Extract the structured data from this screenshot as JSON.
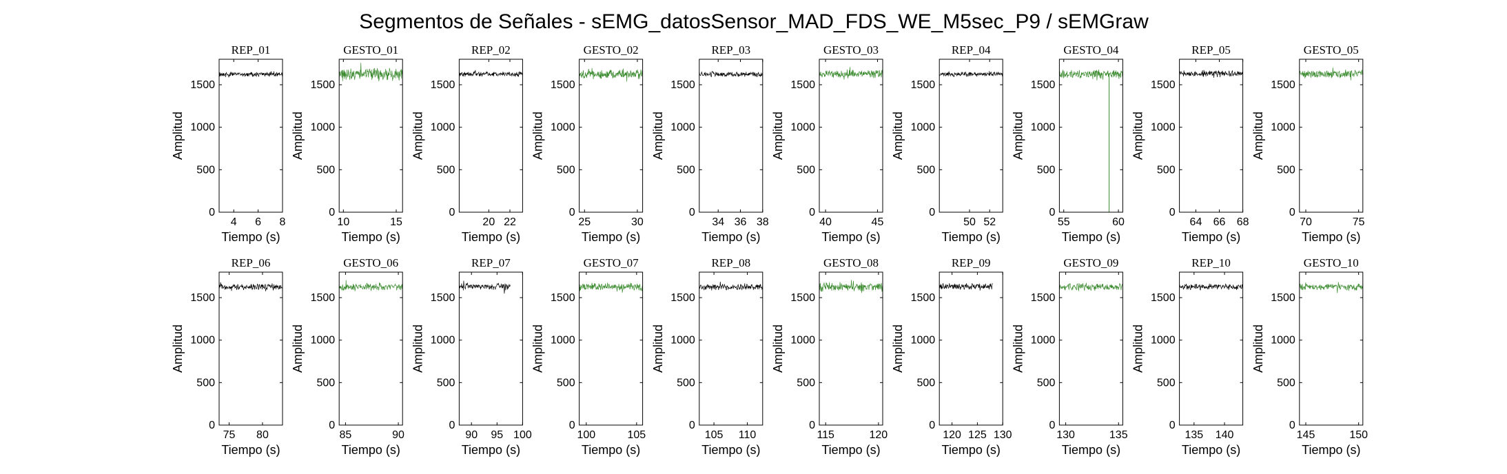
{
  "figure_title": "Segmentos de Señales - sEMG_datosSensor_MAD_FDS_WE_M5sec_P9 / sEMGraw",
  "colors": {
    "rep": "#000000",
    "gesto": "#3a8a2e"
  },
  "chart_data": [
    {
      "type": "line",
      "title": "REP_01",
      "xlabel": "Tiempo (s)",
      "ylabel": "Amplitud",
      "xlim": [
        2.8,
        8
      ],
      "xticks": [
        4,
        6,
        8
      ],
      "ylim": [
        0,
        1800
      ],
      "yticks": [
        0,
        500,
        1000,
        1500
      ],
      "color": "rep",
      "series": [
        {
          "x_range": [
            2.8,
            8
          ],
          "mean": 1625,
          "amplitude": 35
        }
      ]
    },
    {
      "type": "line",
      "title": "GESTO_01",
      "xlabel": "Tiempo (s)",
      "ylabel": "Amplitud",
      "xlim": [
        9.6,
        15.6
      ],
      "xticks": [
        10,
        15
      ],
      "ylim": [
        0,
        1800
      ],
      "yticks": [
        0,
        500,
        1000,
        1500
      ],
      "color": "gesto",
      "series": [
        {
          "x_range": [
            9.6,
            15.6
          ],
          "mean": 1625,
          "amplitude": 90
        }
      ]
    },
    {
      "type": "line",
      "title": "REP_02",
      "xlabel": "Tiempo (s)",
      "ylabel": "Amplitud",
      "xlim": [
        17.2,
        23.2
      ],
      "xticks": [
        20,
        22
      ],
      "ylim": [
        0,
        1800
      ],
      "yticks": [
        0,
        500,
        1000,
        1500
      ],
      "color": "rep",
      "series": [
        {
          "x_range": [
            17.2,
            23.2
          ],
          "mean": 1625,
          "amplitude": 35
        }
      ]
    },
    {
      "type": "line",
      "title": "GESTO_02",
      "xlabel": "Tiempo (s)",
      "ylabel": "Amplitud",
      "xlim": [
        24.5,
        30.5
      ],
      "xticks": [
        25,
        30
      ],
      "ylim": [
        0,
        1800
      ],
      "yticks": [
        0,
        500,
        1000,
        1500
      ],
      "color": "gesto",
      "series": [
        {
          "x_range": [
            24.5,
            30.5
          ],
          "mean": 1625,
          "amplitude": 70
        }
      ]
    },
    {
      "type": "line",
      "title": "REP_03",
      "xlabel": "Tiempo (s)",
      "ylabel": "Amplitud",
      "xlim": [
        32.3,
        38
      ],
      "xticks": [
        34,
        36,
        38
      ],
      "ylim": [
        0,
        1800
      ],
      "yticks": [
        0,
        500,
        1000,
        1500
      ],
      "color": "rep",
      "series": [
        {
          "x_range": [
            32.3,
            38
          ],
          "mean": 1625,
          "amplitude": 35
        }
      ]
    },
    {
      "type": "line",
      "title": "GESTO_03",
      "xlabel": "Tiempo (s)",
      "ylabel": "Amplitud",
      "xlim": [
        39.4,
        45.5
      ],
      "xticks": [
        40,
        45
      ],
      "ylim": [
        0,
        1800
      ],
      "yticks": [
        0,
        500,
        1000,
        1500
      ],
      "color": "gesto",
      "series": [
        {
          "x_range": [
            39.4,
            45.5
          ],
          "mean": 1625,
          "amplitude": 60
        }
      ]
    },
    {
      "type": "line",
      "title": "REP_04",
      "xlabel": "Tiempo (s)",
      "ylabel": "Amplitud",
      "xlim": [
        47,
        53.3
      ],
      "xticks": [
        50,
        52
      ],
      "ylim": [
        0,
        1800
      ],
      "yticks": [
        0,
        500,
        1000,
        1500
      ],
      "color": "rep",
      "series": [
        {
          "x_range": [
            47,
            53.3
          ],
          "mean": 1625,
          "amplitude": 35
        }
      ]
    },
    {
      "type": "line",
      "title": "GESTO_04",
      "xlabel": "Tiempo (s)",
      "ylabel": "Amplitud",
      "xlim": [
        54.6,
        60.4
      ],
      "xticks": [
        55,
        60
      ],
      "ylim": [
        0,
        1800
      ],
      "yticks": [
        0,
        500,
        1000,
        1500
      ],
      "color": "gesto",
      "series": [
        {
          "x_range": [
            54.6,
            60.4
          ],
          "mean": 1625,
          "amplitude": 60,
          "spikes": [
            {
              "x": 59.15,
              "y": 0
            },
            {
              "x": 60.05,
              "y": 1570
            }
          ]
        }
      ]
    },
    {
      "type": "line",
      "title": "REP_05",
      "xlabel": "Tiempo (s)",
      "ylabel": "Amplitud",
      "xlim": [
        62.6,
        68
      ],
      "xticks": [
        64,
        66,
        68
      ],
      "ylim": [
        0,
        1800
      ],
      "yticks": [
        0,
        500,
        1000,
        1500
      ],
      "color": "rep",
      "series": [
        {
          "x_range": [
            62.6,
            68
          ],
          "mean": 1630,
          "amplitude": 45
        }
      ]
    },
    {
      "type": "line",
      "title": "GESTO_05",
      "xlabel": "Tiempo (s)",
      "ylabel": "Amplitud",
      "xlim": [
        69.4,
        75.4
      ],
      "xticks": [
        70,
        75
      ],
      "ylim": [
        0,
        1800
      ],
      "yticks": [
        0,
        500,
        1000,
        1500
      ],
      "color": "gesto",
      "series": [
        {
          "x_range": [
            69.4,
            75.4
          ],
          "mean": 1625,
          "amplitude": 55
        }
      ]
    },
    {
      "type": "line",
      "title": "REP_06",
      "xlabel": "Tiempo (s)",
      "ylabel": "Amplitud",
      "xlim": [
        73.5,
        83
      ],
      "xticks": [
        75,
        80
      ],
      "ylim": [
        0,
        1800
      ],
      "yticks": [
        0,
        500,
        1000,
        1500
      ],
      "color": "rep",
      "series": [
        {
          "x_range": [
            73.5,
            83
          ],
          "mean": 1625,
          "amplitude": 45
        }
      ]
    },
    {
      "type": "line",
      "title": "GESTO_06",
      "xlabel": "Tiempo (s)",
      "ylabel": "Amplitud",
      "xlim": [
        84.4,
        90.4
      ],
      "xticks": [
        85,
        90
      ],
      "ylim": [
        0,
        1800
      ],
      "yticks": [
        0,
        500,
        1000,
        1500
      ],
      "color": "gesto",
      "series": [
        {
          "x_range": [
            84.4,
            90.4
          ],
          "mean": 1625,
          "amplitude": 50
        }
      ]
    },
    {
      "type": "line",
      "title": "REP_07",
      "xlabel": "Tiempo (s)",
      "ylabel": "Amplitud",
      "xlim": [
        87.6,
        100
      ],
      "xticks": [
        90,
        95,
        100
      ],
      "ylim": [
        0,
        1800
      ],
      "yticks": [
        0,
        500,
        1000,
        1500
      ],
      "color": "rep",
      "series": [
        {
          "x_range": [
            87.6,
            97.6
          ],
          "mean": 1630,
          "amplitude": 50
        }
      ]
    },
    {
      "type": "line",
      "title": "GESTO_07",
      "xlabel": "Tiempo (s)",
      "ylabel": "Amplitud",
      "xlim": [
        99.3,
        105.6
      ],
      "xticks": [
        100,
        105
      ],
      "ylim": [
        0,
        1800
      ],
      "yticks": [
        0,
        500,
        1000,
        1500
      ],
      "color": "gesto",
      "series": [
        {
          "x_range": [
            99.3,
            105.6
          ],
          "mean": 1625,
          "amplitude": 55
        }
      ]
    },
    {
      "type": "line",
      "title": "REP_08",
      "xlabel": "Tiempo (s)",
      "ylabel": "Amplitud",
      "xlim": [
        102.8,
        112.3
      ],
      "xticks": [
        105,
        110
      ],
      "ylim": [
        0,
        1800
      ],
      "yticks": [
        0,
        500,
        1000,
        1500
      ],
      "color": "rep",
      "series": [
        {
          "x_range": [
            102.8,
            112.3
          ],
          "mean": 1625,
          "amplitude": 45
        }
      ]
    },
    {
      "type": "line",
      "title": "GESTO_08",
      "xlabel": "Tiempo (s)",
      "ylabel": "Amplitud",
      "xlim": [
        114.4,
        120.4
      ],
      "xticks": [
        115,
        120
      ],
      "ylim": [
        0,
        1800
      ],
      "yticks": [
        0,
        500,
        1000,
        1500
      ],
      "color": "gesto",
      "series": [
        {
          "x_range": [
            114.4,
            120.4
          ],
          "mean": 1625,
          "amplitude": 60
        }
      ]
    },
    {
      "type": "line",
      "title": "REP_09",
      "xlabel": "Tiempo (s)",
      "ylabel": "Amplitud",
      "xlim": [
        117.5,
        130
      ],
      "xticks": [
        120,
        125,
        130
      ],
      "ylim": [
        0,
        1800
      ],
      "yticks": [
        0,
        500,
        1000,
        1500
      ],
      "color": "rep",
      "series": [
        {
          "x_range": [
            117.5,
            128
          ],
          "mean": 1630,
          "amplitude": 45
        }
      ]
    },
    {
      "type": "line",
      "title": "GESTO_09",
      "xlabel": "Tiempo (s)",
      "ylabel": "Amplitud",
      "xlim": [
        129.4,
        135.4
      ],
      "xticks": [
        130,
        135
      ],
      "ylim": [
        0,
        1800
      ],
      "yticks": [
        0,
        500,
        1000,
        1500
      ],
      "color": "gesto",
      "series": [
        {
          "x_range": [
            129.4,
            135.4
          ],
          "mean": 1625,
          "amplitude": 50
        }
      ]
    },
    {
      "type": "line",
      "title": "REP_10",
      "xlabel": "Tiempo (s)",
      "ylabel": "Amplitud",
      "xlim": [
        132.6,
        143
      ],
      "xticks": [
        135,
        140
      ],
      "ylim": [
        0,
        1800
      ],
      "yticks": [
        0,
        500,
        1000,
        1500
      ],
      "color": "rep",
      "series": [
        {
          "x_range": [
            132.6,
            143
          ],
          "mean": 1625,
          "amplitude": 45
        }
      ]
    },
    {
      "type": "line",
      "title": "GESTO_10",
      "xlabel": "Tiempo (s)",
      "ylabel": "Amplitud",
      "xlim": [
        144.4,
        150.4
      ],
      "xticks": [
        145,
        150
      ],
      "ylim": [
        0,
        1800
      ],
      "yticks": [
        0,
        500,
        1000,
        1500
      ],
      "color": "gesto",
      "series": [
        {
          "x_range": [
            144.4,
            150.4
          ],
          "mean": 1625,
          "amplitude": 45
        }
      ]
    }
  ]
}
